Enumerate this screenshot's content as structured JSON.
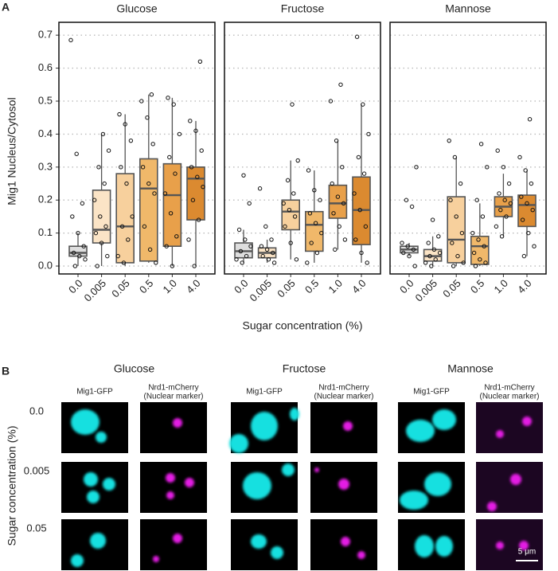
{
  "chart_data": {
    "type": "box",
    "panel_label": "A",
    "y_label": "Mig1 Nucleus/Cytosol",
    "x_label": "Sugar concentration (%)",
    "categories": [
      "0.0",
      "0.005",
      "0.05",
      "0.5",
      "1.0",
      "4.0"
    ],
    "colors": [
      "#dedede",
      "#fbe4c6",
      "#f7d09d",
      "#f0b86a",
      "#e8a04a",
      "#db8a30"
    ],
    "ylim": [
      -0.024,
      0.739
    ],
    "yticks": [
      {
        "value": 0,
        "label": "0.0"
      },
      0.1,
      0.2,
      0.3,
      0.4,
      0.5,
      0.6,
      0.7
    ],
    "grid": true,
    "facets": [
      {
        "title": "Glucose",
        "boxes": [
          {
            "min": 0.0,
            "q1": 0.03,
            "median": 0.04,
            "q3": 0.06,
            "max": 0.1,
            "points": [
              0.685,
              0.34,
              0.19,
              0.15,
              0.1,
              0.06,
              0.04,
              0.03,
              0.02,
              0.0
            ]
          },
          {
            "min": 0.0,
            "q1": 0.07,
            "median": 0.11,
            "q3": 0.23,
            "max": 0.4,
            "points": [
              0.4,
              0.35,
              0.3,
              0.25,
              0.2,
              0.15,
              0.12,
              0.1,
              0.07,
              0.03,
              0.0
            ]
          },
          {
            "min": 0.0,
            "q1": 0.01,
            "median": 0.12,
            "q3": 0.28,
            "max": 0.46,
            "points": [
              0.46,
              0.43,
              0.38,
              0.3,
              0.25,
              0.15,
              0.12,
              0.08,
              0.03,
              0.01
            ]
          },
          {
            "min": 0.01,
            "q1": 0.015,
            "median": 0.235,
            "q3": 0.325,
            "max": 0.52,
            "points": [
              0.52,
              0.5,
              0.45,
              0.37,
              0.3,
              0.25,
              0.22,
              0.12,
              0.05,
              0.01
            ]
          },
          {
            "min": 0.0,
            "q1": 0.06,
            "median": 0.215,
            "q3": 0.31,
            "max": 0.51,
            "points": [
              0.51,
              0.49,
              0.4,
              0.33,
              0.28,
              0.22,
              0.16,
              0.09,
              0.06,
              0.0
            ]
          },
          {
            "min": 0.0,
            "q1": 0.14,
            "median": 0.265,
            "q3": 0.3,
            "max": 0.44,
            "points": [
              0.62,
              0.44,
              0.41,
              0.35,
              0.3,
              0.27,
              0.24,
              0.2,
              0.14,
              0.08,
              0.0
            ]
          }
        ]
      },
      {
        "title": "Fructose",
        "boxes": [
          {
            "min": 0.01,
            "q1": 0.025,
            "median": 0.045,
            "q3": 0.07,
            "max": 0.11,
            "points": [
              0.275,
              0.19,
              0.11,
              0.08,
              0.06,
              0.045,
              0.03,
              0.02,
              0.01
            ]
          },
          {
            "min": 0.01,
            "q1": 0.025,
            "median": 0.04,
            "q3": 0.055,
            "max": 0.08,
            "points": [
              0.235,
              0.12,
              0.08,
              0.06,
              0.05,
              0.04,
              0.03,
              0.02,
              0.01
            ]
          },
          {
            "min": 0.02,
            "q1": 0.11,
            "median": 0.165,
            "q3": 0.2,
            "max": 0.32,
            "points": [
              0.49,
              0.32,
              0.26,
              0.22,
              0.19,
              0.17,
              0.15,
              0.12,
              0.07,
              0.02
            ]
          },
          {
            "min": 0.01,
            "q1": 0.045,
            "median": 0.125,
            "q3": 0.165,
            "max": 0.29,
            "points": [
              0.29,
              0.23,
              0.2,
              0.16,
              0.13,
              0.1,
              0.07,
              0.04,
              0.01
            ]
          },
          {
            "min": 0.05,
            "q1": 0.145,
            "median": 0.19,
            "q3": 0.245,
            "max": 0.38,
            "points": [
              0.55,
              0.5,
              0.38,
              0.3,
              0.25,
              0.21,
              0.19,
              0.16,
              0.12,
              0.08,
              0.05
            ]
          },
          {
            "min": 0.01,
            "q1": 0.065,
            "median": 0.17,
            "q3": 0.27,
            "max": 0.49,
            "points": [
              0.695,
              0.49,
              0.4,
              0.33,
              0.28,
              0.22,
              0.17,
              0.12,
              0.08,
              0.04,
              0.01
            ]
          }
        ]
      },
      {
        "title": "Mannose",
        "boxes": [
          {
            "min": 0.03,
            "q1": 0.04,
            "median": 0.05,
            "q3": 0.06,
            "max": 0.07,
            "points": [
              0.3,
              0.2,
              0.18,
              0.07,
              0.06,
              0.05,
              0.04,
              0.03,
              0.0
            ]
          },
          {
            "min": 0.0,
            "q1": 0.015,
            "median": 0.03,
            "q3": 0.05,
            "max": 0.09,
            "points": [
              0.14,
              0.09,
              0.07,
              0.05,
              0.04,
              0.03,
              0.02,
              0.01,
              0.0
            ]
          },
          {
            "min": 0.0,
            "q1": 0.01,
            "median": 0.08,
            "q3": 0.21,
            "max": 0.33,
            "points": [
              0.38,
              0.33,
              0.25,
              0.2,
              0.15,
              0.1,
              0.07,
              0.03,
              0.01,
              0.0
            ]
          },
          {
            "min": 0.0,
            "q1": 0.005,
            "median": 0.06,
            "q3": 0.09,
            "max": 0.19,
            "points": [
              0.37,
              0.3,
              0.2,
              0.15,
              0.1,
              0.08,
              0.06,
              0.04,
              0.02,
              0.01,
              0.0
            ]
          },
          {
            "min": 0.09,
            "q1": 0.15,
            "median": 0.18,
            "q3": 0.21,
            "max": 0.28,
            "points": [
              0.35,
              0.3,
              0.25,
              0.22,
              0.2,
              0.19,
              0.17,
              0.15,
              0.12,
              0.09
            ]
          },
          {
            "min": 0.03,
            "q1": 0.12,
            "median": 0.185,
            "q3": 0.215,
            "max": 0.29,
            "points": [
              0.445,
              0.33,
              0.29,
              0.25,
              0.21,
              0.19,
              0.17,
              0.14,
              0.1,
              0.06,
              0.03
            ]
          }
        ]
      }
    ]
  },
  "panel_b": {
    "label": "B",
    "conditions": [
      "Glucose",
      "Fructose",
      "Mannose"
    ],
    "channels": [
      [
        "Mig1-GFP"
      ],
      [
        "Nrd1-mCherry",
        "(Nuclear marker)"
      ]
    ],
    "rows": [
      "0.0",
      "0.005",
      "0.05"
    ],
    "y_label": "Sugar concentration (%)",
    "scale_bar": "5 μm"
  }
}
